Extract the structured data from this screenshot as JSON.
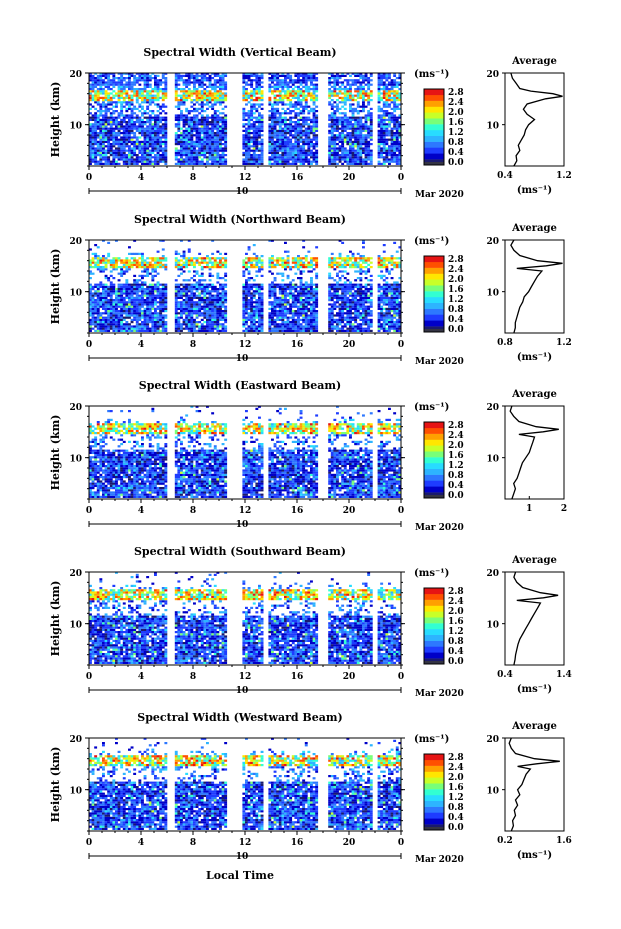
{
  "colors": {
    "background": "#ffffff",
    "colormap": [
      "#1a1a6e",
      "#0000c8",
      "#1e3cff",
      "#2d78ff",
      "#2db4ff",
      "#28dcff",
      "#32ffd2",
      "#78ff78",
      "#c8ff28",
      "#ffe600",
      "#ffa000",
      "#ff5000",
      "#e61414"
    ],
    "missing_data": "#ffffff",
    "bottom_band": "#333344"
  },
  "chart_data": [
    {
      "type": "heatmap",
      "title": "Spectral Width (Vertical Beam)",
      "ylabel": "Height (km)",
      "ylim": [
        2,
        20
      ],
      "yticks": [
        "20",
        "10"
      ],
      "xlim": [
        0,
        24
      ],
      "xticks": [
        "0",
        "4",
        "8",
        "12",
        "16",
        "20",
        "0"
      ],
      "date_day": "10",
      "date_label": "Mar 2020",
      "colorbar": {
        "unit": "(ms⁻¹)",
        "range": [
          0,
          2.8
        ],
        "ticks": [
          "2.8",
          "2.4",
          "2.0",
          "1.6",
          "1.2",
          "0.8",
          "0.4",
          "0.0"
        ]
      },
      "gaps_hours": [
        [
          6.0,
          6.5
        ],
        [
          10.6,
          11.8
        ],
        [
          13.4,
          13.8
        ],
        [
          17.6,
          18.3
        ],
        [
          21.8,
          22.2
        ]
      ],
      "average_profile": {
        "title": "Average",
        "xlabel": "(ms⁻¹)",
        "xlim": [
          0.4,
          1.2
        ],
        "xticks": [
          "0.4",
          "1.2"
        ],
        "yticks": [
          "20",
          "10"
        ],
        "height_km": [
          2,
          3,
          4,
          5,
          6,
          7,
          8,
          9,
          10,
          11,
          12,
          13,
          14,
          15,
          15.5,
          16,
          16.5,
          17,
          18,
          19,
          20
        ],
        "width_ms": [
          0.52,
          0.56,
          0.55,
          0.6,
          0.58,
          0.62,
          0.66,
          0.68,
          0.72,
          0.8,
          0.7,
          0.65,
          0.7,
          0.95,
          1.18,
          1.05,
          0.75,
          0.6,
          0.55,
          0.5,
          0.48
        ]
      }
    },
    {
      "type": "heatmap",
      "title": "Spectral Width (Northward Beam)",
      "ylabel": "Height (km)",
      "ylim": [
        2,
        20
      ],
      "yticks": [
        "20",
        "10"
      ],
      "xlim": [
        0,
        24
      ],
      "xticks": [
        "0",
        "4",
        "8",
        "12",
        "16",
        "20",
        "0"
      ],
      "date_day": "10",
      "date_label": "Mar 2020",
      "colorbar": {
        "unit": "(ms⁻¹)",
        "range": [
          0,
          2.8
        ],
        "ticks": [
          "2.8",
          "2.4",
          "2.0",
          "1.6",
          "1.2",
          "0.8",
          "0.4",
          "0.0"
        ]
      },
      "gaps_hours": [
        [
          6.0,
          6.5
        ],
        [
          10.6,
          11.8
        ],
        [
          13.4,
          13.8
        ],
        [
          17.6,
          18.3
        ],
        [
          21.8,
          22.2
        ]
      ],
      "average_profile": {
        "title": "Average",
        "xlabel": "(ms⁻¹)",
        "xlim": [
          0.8,
          1.2
        ],
        "xticks": [
          "0.8",
          "1.2"
        ],
        "yticks": [
          "20",
          "10"
        ],
        "height_km": [
          2,
          3,
          4,
          5,
          6,
          7,
          8,
          9,
          10,
          11,
          12,
          13,
          14,
          14.5,
          15,
          15.5,
          16,
          17,
          18,
          19,
          20
        ],
        "width_ms": [
          0.86,
          0.87,
          0.87,
          0.88,
          0.89,
          0.9,
          0.92,
          0.93,
          0.96,
          0.98,
          1.0,
          1.02,
          1.05,
          0.88,
          1.08,
          1.19,
          1.02,
          0.9,
          0.86,
          0.84,
          0.86
        ]
      }
    },
    {
      "type": "heatmap",
      "title": "Spectral Width (Eastward Beam)",
      "ylabel": "Height (km)",
      "ylim": [
        2,
        20
      ],
      "yticks": [
        "20",
        "10"
      ],
      "xlim": [
        0,
        24
      ],
      "xticks": [
        "0",
        "4",
        "8",
        "12",
        "16",
        "20",
        "0"
      ],
      "date_day": "10",
      "date_label": "Mar 2020",
      "colorbar": {
        "unit": "(ms⁻¹)",
        "range": [
          0,
          2.8
        ],
        "ticks": [
          "2.8",
          "2.4",
          "2.0",
          "1.6",
          "1.2",
          "0.8",
          "0.4",
          "0.0"
        ]
      },
      "gaps_hours": [
        [
          6.0,
          6.5
        ],
        [
          10.6,
          11.8
        ],
        [
          13.4,
          13.8
        ],
        [
          17.6,
          18.3
        ],
        [
          21.8,
          22.2
        ]
      ],
      "average_profile": {
        "title": "Average",
        "xlabel": "",
        "xlim": [
          0.3,
          2.0
        ],
        "xticks": [
          "1",
          "2"
        ],
        "yticks": [
          "20",
          "10"
        ],
        "height_km": [
          2,
          3,
          4,
          5,
          6,
          7,
          8,
          9,
          10,
          11,
          12,
          13,
          14,
          14.5,
          15,
          15.5,
          16,
          17,
          18,
          19,
          20
        ],
        "width_ms": [
          0.5,
          0.55,
          0.6,
          0.55,
          0.65,
          0.7,
          0.75,
          0.8,
          0.9,
          1.0,
          1.05,
          1.1,
          1.15,
          0.7,
          1.4,
          1.85,
          1.2,
          0.7,
          0.55,
          0.45,
          0.5
        ]
      }
    },
    {
      "type": "heatmap",
      "title": "Spectral Width (Southward Beam)",
      "ylabel": "Height (km)",
      "ylim": [
        2,
        20
      ],
      "yticks": [
        "20",
        "10"
      ],
      "xlim": [
        0,
        24
      ],
      "xticks": [
        "0",
        "4",
        "8",
        "12",
        "16",
        "20",
        "0"
      ],
      "date_day": "10",
      "date_label": "Mar 2020",
      "colorbar": {
        "unit": "(ms⁻¹)",
        "range": [
          0,
          2.8
        ],
        "ticks": [
          "2.8",
          "2.4",
          "2.0",
          "1.6",
          "1.2",
          "0.8",
          "0.4",
          "0.0"
        ]
      },
      "gaps_hours": [
        [
          6.0,
          6.5
        ],
        [
          10.6,
          11.8
        ],
        [
          13.4,
          13.8
        ],
        [
          17.6,
          18.3
        ],
        [
          21.8,
          22.2
        ]
      ],
      "average_profile": {
        "title": "Average",
        "xlabel": "(ms⁻¹)",
        "xlim": [
          0.4,
          1.4
        ],
        "xticks": [
          "0.4",
          "1.4"
        ],
        "yticks": [
          "20",
          "10"
        ],
        "height_km": [
          2,
          3,
          4,
          5,
          6,
          7,
          8,
          9,
          10,
          11,
          12,
          13,
          14,
          14.5,
          15,
          15.5,
          16,
          17,
          18,
          19,
          20
        ],
        "width_ms": [
          0.55,
          0.57,
          0.58,
          0.6,
          0.62,
          0.65,
          0.7,
          0.75,
          0.8,
          0.85,
          0.9,
          0.95,
          1.0,
          0.6,
          1.05,
          1.3,
          1.0,
          0.7,
          0.6,
          0.55,
          0.58
        ]
      }
    },
    {
      "type": "heatmap",
      "title": "Spectral Width (Westward Beam)",
      "ylabel": "Height (km)",
      "ylim": [
        2,
        20
      ],
      "yticks": [
        "20",
        "10"
      ],
      "xlim": [
        0,
        24
      ],
      "xticks": [
        "0",
        "4",
        "8",
        "12",
        "16",
        "20",
        "0"
      ],
      "date_day": "10",
      "date_label": "Mar 2020",
      "xlabel": "Local Time",
      "colorbar": {
        "unit": "(ms⁻¹)",
        "range": [
          0,
          2.8
        ],
        "ticks": [
          "2.8",
          "2.4",
          "2.0",
          "1.6",
          "1.2",
          "0.8",
          "0.4",
          "0.0"
        ]
      },
      "gaps_hours": [
        [
          6.0,
          6.5
        ],
        [
          10.6,
          11.8
        ],
        [
          13.4,
          13.8
        ],
        [
          17.6,
          18.3
        ],
        [
          21.8,
          22.2
        ]
      ],
      "average_profile": {
        "title": "Average",
        "xlabel": "(ms⁻¹)",
        "xlim": [
          0.2,
          1.6
        ],
        "xticks": [
          "0.2",
          "1.6"
        ],
        "yticks": [
          "20",
          "10"
        ],
        "height_km": [
          2,
          3,
          4,
          5,
          6,
          7,
          8,
          9,
          10,
          11,
          12,
          13,
          14,
          14.5,
          15,
          15.5,
          16,
          17,
          18,
          19,
          20
        ],
        "width_ms": [
          0.35,
          0.4,
          0.38,
          0.45,
          0.42,
          0.5,
          0.45,
          0.55,
          0.5,
          0.6,
          0.65,
          0.7,
          0.8,
          0.5,
          0.95,
          1.5,
          0.9,
          0.45,
          0.35,
          0.3,
          0.35
        ]
      }
    }
  ]
}
